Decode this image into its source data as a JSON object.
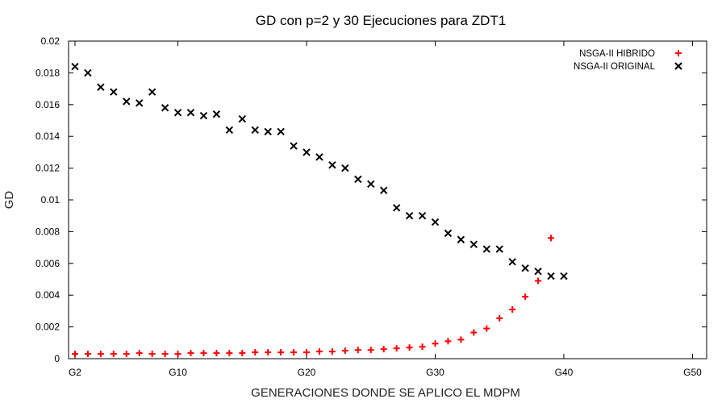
{
  "chart_data": {
    "type": "scatter",
    "title": "GD con p=2 y 30 Ejecuciones para ZDT1",
    "xlabel": "GENERACIONES DONDE SE APLICO EL MDPM",
    "ylabel": "GD",
    "xlim": [
      1.5,
      51.1
    ],
    "ylim": [
      0,
      0.02
    ],
    "x_ticks": [
      {
        "value": 2,
        "label": "G2"
      },
      {
        "value": 10,
        "label": "G10"
      },
      {
        "value": 20,
        "label": "G20"
      },
      {
        "value": 30,
        "label": "G30"
      },
      {
        "value": 40,
        "label": "G40"
      },
      {
        "value": 50,
        "label": "G50"
      }
    ],
    "y_ticks": [
      {
        "value": 0,
        "label": "0"
      },
      {
        "value": 0.002,
        "label": "0.002"
      },
      {
        "value": 0.004,
        "label": "0.004"
      },
      {
        "value": 0.006,
        "label": "0.006"
      },
      {
        "value": 0.008,
        "label": "0.008"
      },
      {
        "value": 0.01,
        "label": "0.01"
      },
      {
        "value": 0.012,
        "label": "0.012"
      },
      {
        "value": 0.014,
        "label": "0.014"
      },
      {
        "value": 0.016,
        "label": "0.016"
      },
      {
        "value": 0.018,
        "label": "0.018"
      },
      {
        "value": 0.02,
        "label": "0.02"
      }
    ],
    "grid": false,
    "legend_position": "top-right",
    "series": [
      {
        "name": "NSGA-II HIBRIDO",
        "color": "#ff0000",
        "marker": "plus",
        "x": [
          2,
          3,
          4,
          5,
          6,
          7,
          8,
          9,
          10,
          11,
          12,
          13,
          14,
          15,
          16,
          17,
          18,
          19,
          20,
          21,
          22,
          23,
          24,
          25,
          26,
          27,
          28,
          29,
          30,
          31,
          32,
          33,
          34,
          35,
          36,
          37,
          38,
          39
        ],
        "y": [
          0.0003,
          0.0003,
          0.0003,
          0.0003,
          0.0003,
          0.00035,
          0.0003,
          0.0003,
          0.0003,
          0.00035,
          0.00035,
          0.00035,
          0.00035,
          0.00035,
          0.0004,
          0.0004,
          0.0004,
          0.0004,
          0.0004,
          0.00045,
          0.00045,
          0.0005,
          0.00055,
          0.00055,
          0.0006,
          0.00065,
          0.0007,
          0.00075,
          0.00095,
          0.0011,
          0.0012,
          0.00165,
          0.0019,
          0.00255,
          0.0031,
          0.0039,
          0.0049,
          0.0076
        ]
      },
      {
        "name": "NSGA-II ORIGINAL",
        "color": "#000000",
        "marker": "cross",
        "x": [
          2,
          3,
          4,
          5,
          6,
          7,
          8,
          9,
          10,
          11,
          12,
          13,
          14,
          15,
          16,
          17,
          18,
          19,
          20,
          21,
          22,
          23,
          24,
          25,
          26,
          27,
          28,
          29,
          30,
          31,
          32,
          33,
          34,
          35,
          36,
          37,
          38,
          39,
          40
        ],
        "y": [
          0.0184,
          0.018,
          0.0171,
          0.0168,
          0.0162,
          0.0161,
          0.0168,
          0.0158,
          0.0155,
          0.0155,
          0.0153,
          0.0154,
          0.0144,
          0.0151,
          0.0144,
          0.0143,
          0.0143,
          0.0134,
          0.013,
          0.0127,
          0.0122,
          0.012,
          0.0113,
          0.011,
          0.0106,
          0.0095,
          0.009,
          0.009,
          0.0086,
          0.0079,
          0.0075,
          0.0072,
          0.0069,
          0.0069,
          0.0061,
          0.0057,
          0.0055,
          0.0052,
          0.0052
        ]
      }
    ]
  }
}
